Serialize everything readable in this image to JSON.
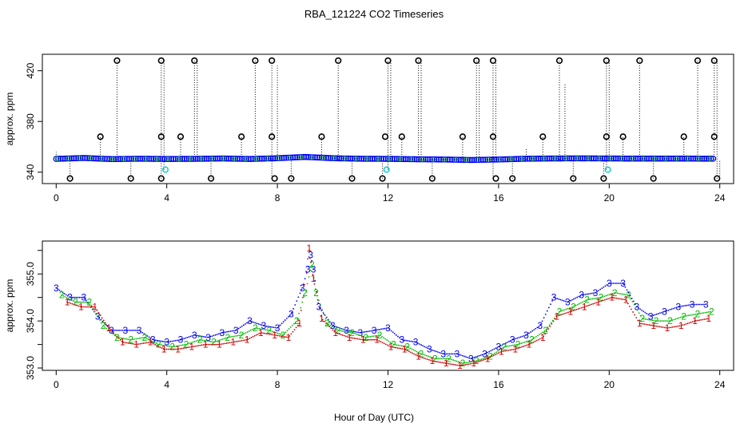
{
  "figure": {
    "title": "RBA_121224  CO2 Timeseries",
    "xlabel": "Hour of Day (UTC)"
  },
  "colors": {
    "frame": "#000000",
    "range_line": "#000000",
    "points_main": "#0000ff",
    "points_green": "#00b000",
    "points_cyan": "#00cccc",
    "outlier": "#000000",
    "label_1": "#cc0000",
    "label_2": "#00bb00",
    "label_3": "#0000ee"
  },
  "chart_data": [
    {
      "id": "top",
      "type": "scatter",
      "ylabel": "approx. ppm",
      "xlim": [
        -0.5,
        24.5
      ],
      "ylim": [
        331,
        433
      ],
      "xticks": [
        0,
        4,
        8,
        12,
        16,
        20,
        24
      ],
      "xtick_labels": [
        "0",
        "4",
        "8",
        "12",
        "16",
        "20",
        "24"
      ],
      "yticks": [
        340,
        380,
        420
      ],
      "ytick_labels": [
        "340",
        "380",
        "420"
      ],
      "baseline": [
        [
          0,
          350.5
        ],
        [
          1,
          351.2
        ],
        [
          2,
          350.3
        ],
        [
          3,
          350.6
        ],
        [
          4,
          350.4
        ],
        [
          5,
          350.5
        ],
        [
          6,
          350.8
        ],
        [
          7,
          350.4
        ],
        [
          8,
          351.0
        ],
        [
          9,
          352.0
        ],
        [
          10,
          351.0
        ],
        [
          11,
          350.6
        ],
        [
          12,
          350.5
        ],
        [
          13,
          350.2
        ],
        [
          14,
          350.0
        ],
        [
          15,
          349.6
        ],
        [
          16,
          350.0
        ],
        [
          17,
          350.6
        ],
        [
          18,
          350.8
        ],
        [
          19,
          350.9
        ],
        [
          20,
          350.8
        ],
        [
          21,
          350.7
        ],
        [
          22,
          350.7
        ],
        [
          23,
          350.7
        ],
        [
          23.8,
          350.6
        ]
      ],
      "outliers_high": [
        [
          2.2,
          428
        ],
        [
          3.8,
          428
        ],
        [
          5.0,
          428
        ],
        [
          7.2,
          428
        ],
        [
          7.8,
          428
        ],
        [
          10.2,
          428
        ],
        [
          12.0,
          428
        ],
        [
          13.1,
          428
        ],
        [
          15.2,
          428
        ],
        [
          15.8,
          428
        ],
        [
          18.2,
          428
        ],
        [
          19.9,
          428
        ],
        [
          21.1,
          428
        ],
        [
          23.2,
          428
        ],
        [
          23.8,
          428
        ]
      ],
      "outliers_mid": [
        [
          1.6,
          368
        ],
        [
          3.8,
          368
        ],
        [
          4.5,
          368
        ],
        [
          6.7,
          368
        ],
        [
          7.8,
          368
        ],
        [
          9.6,
          368
        ],
        [
          11.9,
          368
        ],
        [
          12.5,
          368
        ],
        [
          14.7,
          368
        ],
        [
          15.8,
          368
        ],
        [
          17.6,
          368
        ],
        [
          19.9,
          368
        ],
        [
          20.5,
          368
        ],
        [
          22.7,
          368
        ],
        [
          23.8,
          368
        ]
      ],
      "outliers_low": [
        [
          0.5,
          335
        ],
        [
          2.7,
          335
        ],
        [
          3.8,
          335
        ],
        [
          5.6,
          335
        ],
        [
          7.9,
          335
        ],
        [
          8.5,
          335
        ],
        [
          10.7,
          335
        ],
        [
          11.8,
          335
        ],
        [
          13.6,
          335
        ],
        [
          15.9,
          335
        ],
        [
          16.5,
          335
        ],
        [
          18.7,
          335
        ],
        [
          19.8,
          335
        ],
        [
          21.6,
          335
        ],
        [
          23.9,
          335
        ]
      ],
      "cyan_points": [
        [
          3.95,
          342
        ],
        [
          11.95,
          342
        ],
        [
          19.95,
          342
        ]
      ],
      "range_lines": [
        [
          0.0,
          350,
          356
        ],
        [
          0.5,
          335,
          350
        ],
        [
          1.6,
          350,
          368
        ],
        [
          2.2,
          350,
          428
        ],
        [
          2.7,
          335,
          350
        ],
        [
          3.8,
          335,
          428
        ],
        [
          3.9,
          342,
          428
        ],
        [
          4.5,
          350,
          368
        ],
        [
          5.0,
          350,
          428
        ],
        [
          5.1,
          350,
          428
        ],
        [
          5.6,
          335,
          350
        ],
        [
          6.7,
          350,
          368
        ],
        [
          7.2,
          350,
          428
        ],
        [
          7.8,
          335,
          428
        ],
        [
          8.0,
          350,
          424
        ],
        [
          8.5,
          335,
          350
        ],
        [
          9.6,
          350,
          368
        ],
        [
          10.2,
          350,
          428
        ],
        [
          10.7,
          335,
          350
        ],
        [
          11.8,
          335,
          350
        ],
        [
          12.0,
          342,
          428
        ],
        [
          12.1,
          350,
          428
        ],
        [
          12.5,
          350,
          368
        ],
        [
          13.1,
          350,
          428
        ],
        [
          13.2,
          350,
          428
        ],
        [
          13.6,
          335,
          350
        ],
        [
          14.7,
          350,
          368
        ],
        [
          15.2,
          350,
          428
        ],
        [
          15.3,
          350,
          428
        ],
        [
          15.8,
          335,
          428
        ],
        [
          15.9,
          350,
          428
        ],
        [
          16.5,
          335,
          350
        ],
        [
          17.0,
          350,
          359
        ],
        [
          17.6,
          350,
          368
        ],
        [
          18.2,
          350,
          428
        ],
        [
          18.4,
          350,
          410
        ],
        [
          18.7,
          335,
          350
        ],
        [
          19.8,
          335,
          350
        ],
        [
          19.9,
          342,
          428
        ],
        [
          20.0,
          350,
          428
        ],
        [
          20.5,
          350,
          368
        ],
        [
          21.1,
          350,
          428
        ],
        [
          21.6,
          335,
          350
        ],
        [
          22.7,
          350,
          368
        ],
        [
          23.2,
          350,
          428
        ],
        [
          23.8,
          350,
          428
        ],
        [
          23.9,
          335,
          428
        ],
        [
          24.0,
          335,
          350
        ]
      ]
    },
    {
      "id": "bottom",
      "type": "scatter",
      "ylabel": "approx. ppm",
      "xlim": [
        -0.5,
        24.5
      ],
      "ylim": [
        352.95,
        355.7
      ],
      "xticks": [
        0,
        4,
        8,
        12,
        16,
        20,
        24
      ],
      "xtick_labels": [
        "0",
        "4",
        "8",
        "12",
        "16",
        "20",
        "24"
      ],
      "yticks": [
        353.0,
        354.0,
        355.0
      ],
      "ytick_labels": [
        "353.0",
        "354.0",
        "355.0"
      ],
      "minor_yticks": [
        353.5,
        354.5,
        355.5
      ],
      "series": [
        {
          "name": "3",
          "x": [
            0.0,
            0.5,
            1.0,
            1.5,
            2.0,
            2.5,
            3.0,
            3.5,
            4.0,
            4.5,
            5.0,
            5.5,
            6.0,
            6.5,
            7.0,
            7.5,
            8.0,
            8.5,
            8.9,
            9.1,
            9.2,
            9.3,
            9.5,
            10.0,
            10.5,
            11.0,
            11.5,
            12.0,
            12.5,
            13.0,
            13.5,
            14.0,
            14.5,
            15.0,
            15.5,
            16.0,
            16.5,
            17.0,
            17.5,
            18.0,
            18.5,
            19.0,
            19.5,
            20.0,
            20.5,
            21.0,
            21.5,
            22.0,
            22.5,
            23.0,
            23.5
          ],
          "y": [
            354.7,
            354.5,
            354.5,
            354.1,
            353.8,
            353.8,
            353.8,
            353.6,
            353.55,
            353.6,
            353.7,
            353.65,
            353.75,
            353.8,
            354.0,
            353.9,
            353.85,
            354.15,
            354.7,
            355.1,
            355.4,
            355.1,
            354.3,
            353.9,
            353.8,
            353.75,
            353.8,
            353.85,
            353.6,
            353.55,
            353.4,
            353.3,
            353.3,
            353.2,
            353.3,
            353.45,
            353.6,
            353.7,
            353.9,
            354.5,
            354.4,
            354.55,
            354.6,
            354.8,
            354.8,
            354.3,
            354.1,
            354.2,
            354.3,
            354.35,
            354.35
          ]
        },
        {
          "name": "2",
          "x": [
            0.2,
            0.7,
            1.2,
            1.7,
            2.2,
            2.7,
            3.2,
            3.7,
            4.2,
            4.7,
            5.2,
            5.7,
            6.2,
            6.7,
            7.2,
            7.7,
            8.2,
            8.7,
            9.0,
            9.25,
            9.4,
            9.8,
            10.2,
            10.7,
            11.2,
            11.7,
            12.2,
            12.7,
            13.2,
            13.7,
            14.2,
            14.7,
            15.2,
            15.7,
            16.2,
            16.7,
            17.2,
            17.7,
            18.2,
            18.7,
            19.2,
            19.7,
            20.2,
            20.7,
            21.2,
            21.7,
            22.2,
            22.7,
            23.2,
            23.7
          ],
          "y": [
            354.55,
            354.4,
            354.4,
            353.9,
            353.65,
            353.6,
            353.65,
            353.5,
            353.45,
            353.5,
            353.6,
            353.55,
            353.65,
            353.7,
            353.85,
            353.8,
            353.7,
            354.0,
            354.6,
            355.2,
            354.6,
            353.95,
            353.8,
            353.75,
            353.65,
            353.7,
            353.5,
            353.45,
            353.3,
            353.2,
            353.2,
            353.1,
            353.15,
            353.25,
            353.45,
            353.5,
            353.6,
            353.8,
            354.2,
            354.3,
            354.45,
            354.5,
            354.6,
            354.55,
            354.05,
            354.0,
            354.0,
            354.1,
            354.15,
            354.2
          ]
        },
        {
          "name": "1",
          "x": [
            0.4,
            0.9,
            1.4,
            1.9,
            2.4,
            2.9,
            3.4,
            3.9,
            4.4,
            4.9,
            5.4,
            5.9,
            6.4,
            6.9,
            7.4,
            7.9,
            8.4,
            8.8,
            9.15,
            9.3,
            9.6,
            10.1,
            10.6,
            11.1,
            11.6,
            12.1,
            12.6,
            13.1,
            13.6,
            14.1,
            14.6,
            15.1,
            15.6,
            16.1,
            16.6,
            17.1,
            17.6,
            18.1,
            18.6,
            19.1,
            19.6,
            20.1,
            20.6,
            21.1,
            21.6,
            22.1,
            22.6,
            23.1,
            23.6
          ],
          "y": [
            354.4,
            354.3,
            354.3,
            353.85,
            353.55,
            353.5,
            353.55,
            353.4,
            353.4,
            353.45,
            353.5,
            353.5,
            353.55,
            353.6,
            353.75,
            353.7,
            353.65,
            353.95,
            355.55,
            354.9,
            354.05,
            353.75,
            353.65,
            353.6,
            353.6,
            353.45,
            353.4,
            353.25,
            353.15,
            353.1,
            353.05,
            353.1,
            353.2,
            353.35,
            353.4,
            353.5,
            353.65,
            354.1,
            354.2,
            354.3,
            354.4,
            354.5,
            354.45,
            353.95,
            353.9,
            353.85,
            353.9,
            354.0,
            354.05
          ]
        }
      ]
    }
  ]
}
